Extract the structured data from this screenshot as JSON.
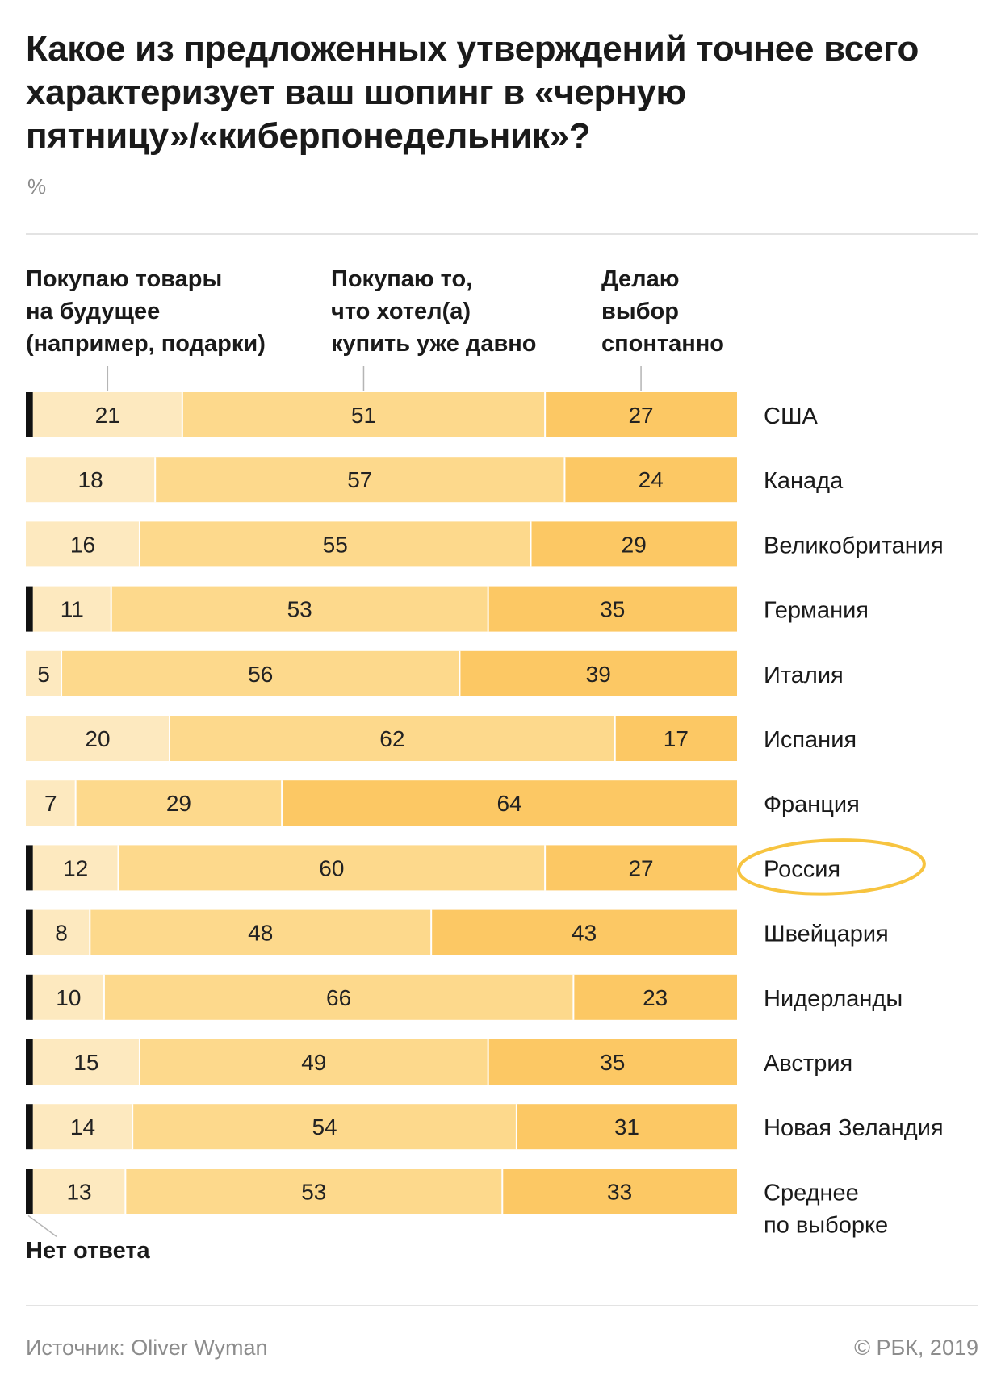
{
  "header": {
    "title": "Какое из предложенных утверждений точнее всего характеризует ваш шопинг в «черную пятницу»/«киберпонедельник»?",
    "unit": "%"
  },
  "legend": {
    "col1": [
      "Покупаю товары",
      "на будущее",
      "(например, подарки)"
    ],
    "col2": [
      "Покупаю то,",
      "что хотел(а)",
      "купить уже давно"
    ],
    "col3": [
      "Делаю",
      "выбор",
      "спонтанно"
    ],
    "no_answer": "Нет ответа"
  },
  "footer": {
    "source": "Источник: Oliver Wyman",
    "copyright": "© РБК, 2019"
  },
  "colors": {
    "seg1": "#fde9bf",
    "seg2": "#fdd98c",
    "seg3": "#fcc864",
    "no_answer": "#111111",
    "highlight": "#f7c440"
  },
  "chart_data": {
    "type": "bar",
    "orientation": "horizontal",
    "stacked": true,
    "unit": "%",
    "highlighted_category": "Россия",
    "categories": [
      "США",
      "Канада",
      "Великобритания",
      "Германия",
      "Италия",
      "Испания",
      "Франция",
      "Россия",
      "Швейцария",
      "Нидерланды",
      "Австрия",
      "Новая Зеландия",
      "Среднее по выборке"
    ],
    "series": [
      {
        "name": "Нет ответа",
        "values": [
          1,
          0,
          0,
          1,
          0,
          0,
          0,
          1,
          1,
          1,
          1,
          1,
          1
        ]
      },
      {
        "name": "Покупаю товары на будущее (например, подарки)",
        "values": [
          21,
          18,
          16,
          11,
          5,
          20,
          7,
          12,
          8,
          10,
          15,
          14,
          13
        ]
      },
      {
        "name": "Покупаю то, что хотел(а) купить уже давно",
        "values": [
          51,
          57,
          55,
          53,
          56,
          62,
          29,
          60,
          48,
          66,
          49,
          54,
          53
        ]
      },
      {
        "name": "Делаю выбор спонтанно",
        "values": [
          27,
          24,
          29,
          35,
          39,
          17,
          64,
          27,
          43,
          23,
          35,
          31,
          33
        ]
      }
    ]
  }
}
